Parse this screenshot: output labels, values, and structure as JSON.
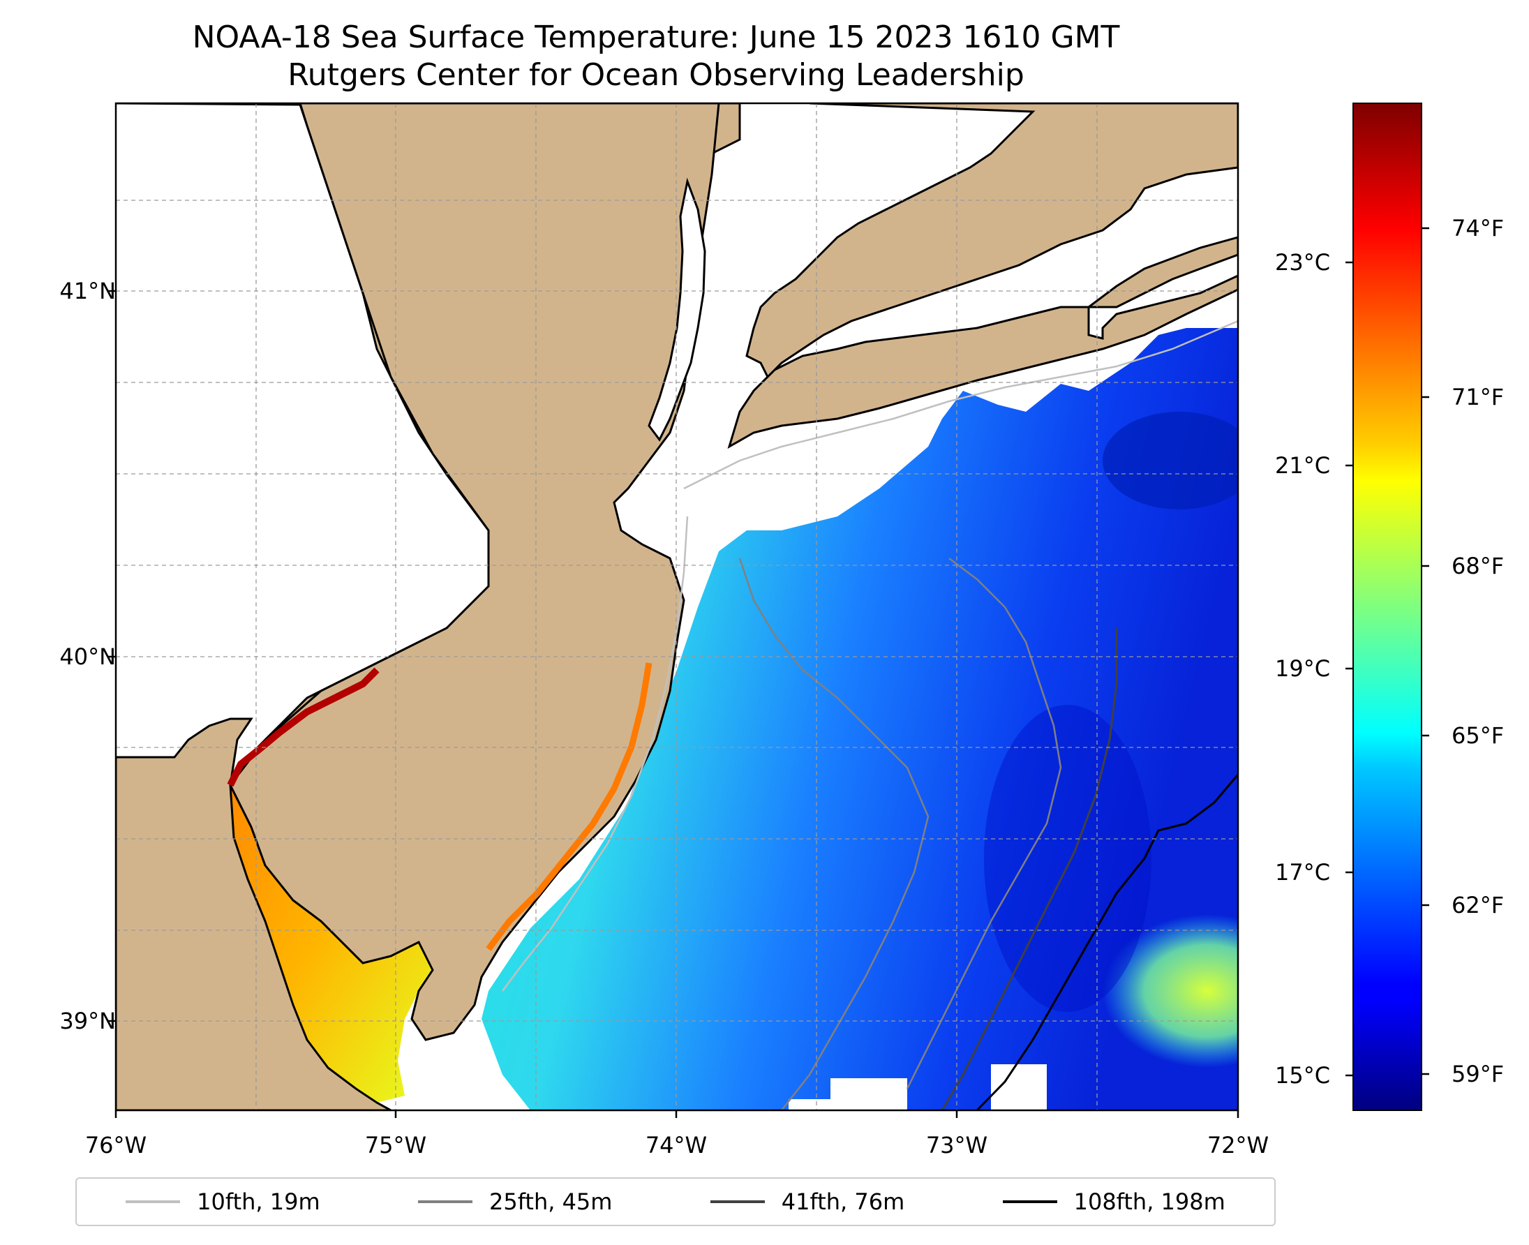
{
  "title": {
    "line1": "NOAA-18 Sea Surface Temperature: June 15 2023 1610 GMT",
    "line2": "Rutgers Center for Ocean Observing Leadership"
  },
  "map": {
    "lon_ticks": [
      "76°W",
      "75°W",
      "74°W",
      "73°W",
      "72°W"
    ],
    "lon_values": [
      -76,
      -75,
      -74,
      -73,
      -72
    ],
    "lat_ticks": [
      "41°N",
      "40°N",
      "39°N"
    ],
    "lat_values": [
      41,
      40,
      39
    ],
    "extent": {
      "lon_min": -76,
      "lon_max": -72,
      "lat_min": 38.75,
      "lat_max": 41.52
    },
    "colors": {
      "land": "#d2b48c",
      "no_data": "#ffffff",
      "coast": "#000000",
      "grid": "#9a9a9a"
    }
  },
  "colorbar": {
    "colormap": "jet",
    "range_f": [
      57.8,
      76.0
    ],
    "celsius_ticks": [
      "23°C",
      "21°C",
      "19°C",
      "17°C",
      "15°C"
    ],
    "celsius_values": [
      23,
      21,
      19,
      17,
      15
    ],
    "fahrenheit_ticks": [
      "74°F",
      "71°F",
      "68°F",
      "65°F",
      "62°F",
      "59°F"
    ],
    "fahrenheit_values": [
      74,
      71,
      68,
      65,
      62,
      59
    ]
  },
  "legend": [
    {
      "label": "10fth, 19m",
      "color": "#c0c0c0"
    },
    {
      "label": "25fth, 45m",
      "color": "#808080"
    },
    {
      "label": "41fth, 76m",
      "color": "#404040"
    },
    {
      "label": "108fth, 198m",
      "color": "#000000"
    }
  ]
}
